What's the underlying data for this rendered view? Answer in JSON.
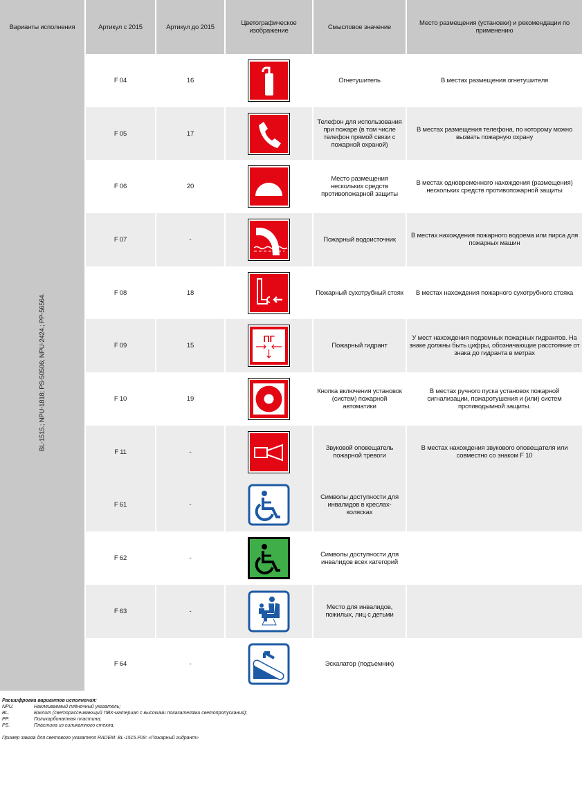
{
  "header": {
    "variants": "Варианты исполнения",
    "article_new": "Артикул с 2015",
    "article_old": "Артикул до 2015",
    "image": "Цветографическое изображение",
    "meaning": "Смысловое значение",
    "placement": "Место размещения (установки) и рекомендации по применению"
  },
  "variants_label": "BL-1515.; NPU-1818; PS-50506; NPU-2424.; PP-56564.",
  "colors": {
    "red": "#e30613",
    "blue": "#1d5aa5",
    "green": "#3fae49",
    "header_gray": "#c8c8c8",
    "row_gray": "#ececec"
  },
  "rows": [
    {
      "code": "F 04",
      "old": "16",
      "icon": "fire-extinguisher-icon",
      "meaning": "Огнетушитель",
      "placement": "В местах размещения огнетушителя"
    },
    {
      "code": "F 05",
      "old": "17",
      "icon": "phone-icon",
      "meaning": "Телефон для использования при пожаре (в том числе телефон прямой связи с пожарной охраной)",
      "placement": "В местах размещения телефона, по которому можно вызвать пожарную охрану"
    },
    {
      "code": "F 06",
      "old": "20",
      "icon": "half-dome-icon",
      "meaning": "Место размещения нескольких средств противопожарной защиты",
      "placement": "В местах одновременного нахождения (размещения) нескольких средств противопожарной защиты"
    },
    {
      "code": "F 07",
      "old": "-",
      "icon": "water-source-icon",
      "meaning": "Пожарный водоисточник",
      "placement": "В местах нахождения пожарного водоема или пирса для пожарных машин"
    },
    {
      "code": "F 08",
      "old": "18",
      "icon": "dry-riser-icon",
      "meaning": "Пожарный сухотрубный стояк",
      "placement": "В местах нахождения пожарного сухотрубного стояка"
    },
    {
      "code": "F 09",
      "old": "15",
      "icon": "hydrant-icon",
      "icon_text": "ПГ",
      "meaning": "Пожарный гидрант",
      "placement": "У мест нахождения подземных пожарных гидрантов. На знаке должны быть цифры, обозначающие расстояние от знака до гидранта в метрах"
    },
    {
      "code": "F 10",
      "old": "19",
      "icon": "alarm-button-icon",
      "meaning": "Кнопка включения установок (систем) пожарной автоматики",
      "placement": "В местах ручного пуска установок пожарной сигнализации, пожаротушения и (или) систем противодымной защиты."
    },
    {
      "code": "F 11",
      "old": "-",
      "icon": "siren-icon",
      "meaning": "Звуковой оповещатель пожарной тревоги",
      "placement": "В местах нахождения звукового оповещателя или совместно со знаком F 10"
    },
    {
      "code": "F 61",
      "old": "-",
      "icon": "wheelchair-icon",
      "meaning": "Символы доступности для инвалидов в креслах-колясках",
      "placement": ""
    },
    {
      "code": "F 62",
      "old": "-",
      "icon": "wheelchair-green-icon",
      "meaning": "Символы доступности для инвалидов всех категорий",
      "placement": ""
    },
    {
      "code": "F 63",
      "old": "-",
      "icon": "priority-seat-icon",
      "meaning": "Место для инвалидов, пожилых, лиц с детьми",
      "placement": ""
    },
    {
      "code": "F 64",
      "old": "-",
      "icon": "escalator-icon",
      "meaning": "Эскалатор (подъемник)",
      "placement": ""
    }
  ],
  "footer": {
    "heading": "Расшифровка вариантов исполнения:",
    "legend": [
      {
        "key": "NPU.",
        "value": "Наклеиваемый плёночный указатель;"
      },
      {
        "key": "BL.",
        "value": "Бэклит (светорассеивающий ПВХ-материал с высокими показателями светопропускания);"
      },
      {
        "key": "PP.",
        "value": "Поликарбонатная пластина;"
      },
      {
        "key": "PS.",
        "value": "Пластина из силикатного стекла."
      }
    ],
    "example": "Пример заказа для светового указателя RADEM: BL-1515.F09: «Пожарный гидрант»"
  }
}
